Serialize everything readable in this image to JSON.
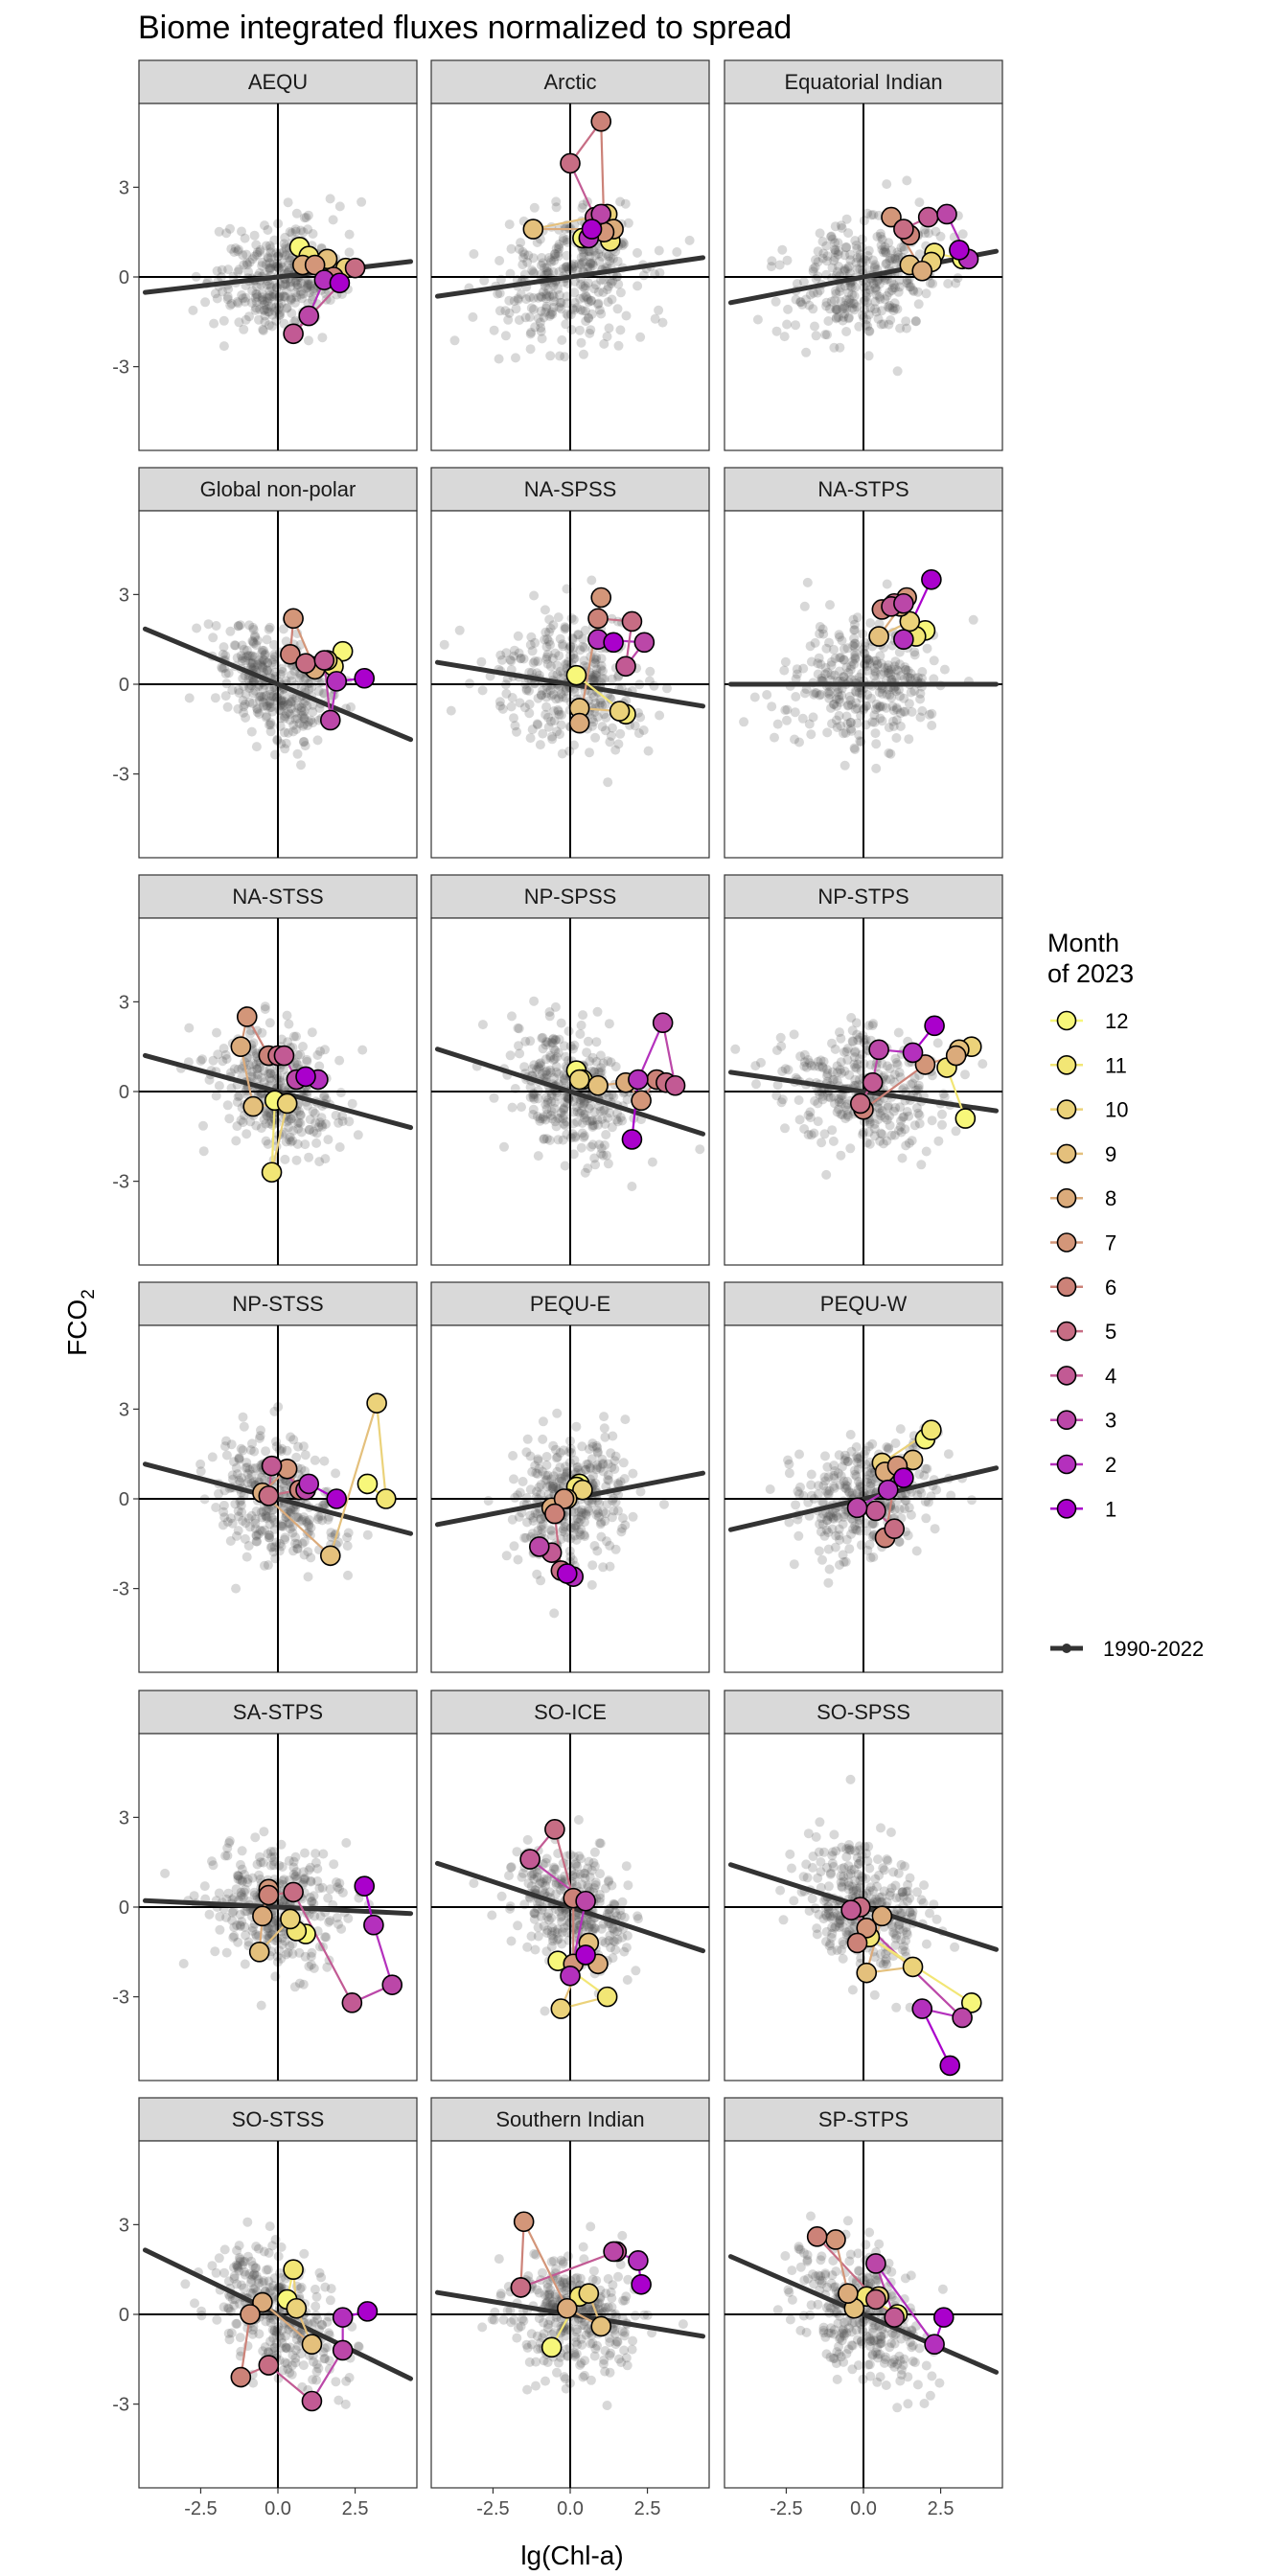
{
  "chart_data": {
    "type": "scatter",
    "title": "Biome integrated fluxes normalized to spread",
    "xlabel": "lg(Chl-a)",
    "ylabel_main": "FCO",
    "ylabel_sub": "2",
    "xlim": [
      -4.5,
      4.5
    ],
    "ylim": [
      -5.8,
      5.8
    ],
    "xticks": [
      -2.5,
      0,
      2.5
    ],
    "xtick_labels": [
      "-2.5",
      "0.0",
      "2.5"
    ],
    "yticks": [
      -3,
      0,
      3
    ],
    "ytick_labels": [
      "-3",
      "0",
      "3"
    ],
    "legend": {
      "title_line1": "Month",
      "title_line2": "of 2023",
      "months": [
        12,
        11,
        10,
        9,
        8,
        7,
        6,
        5,
        4,
        3,
        2,
        1
      ],
      "month_labels": [
        "12",
        "11",
        "10",
        "9",
        "8",
        "7",
        "6",
        "5",
        "4",
        "3",
        "2",
        "1"
      ],
      "month_colors": [
        "#f7f77a",
        "#f2e675",
        "#ebd27a",
        "#e4c07c",
        "#dbab7b",
        "#d39679",
        "#cc8278",
        "#c76d84",
        "#c25a94",
        "#bb47a8",
        "#b430bd",
        "#aa00cc"
      ],
      "line_label": "1990-2022",
      "line_color": "#333333"
    },
    "background_points_color": "#4d4d4d",
    "panels": [
      {
        "name": "AEQU",
        "slope": 0.12,
        "intercept": 0.0,
        "spread_x": 1.0,
        "spread_y": 0.9,
        "month_x": [
          2.0,
          1.5,
          1.0,
          0.5,
          2.5,
          1.8,
          1.2,
          0.8,
          1.6,
          2.2,
          1.0,
          0.7
        ],
        "month_y": [
          -0.2,
          -0.1,
          -1.3,
          -1.9,
          0.3,
          0.0,
          0.4,
          0.4,
          0.6,
          0.3,
          0.7,
          1.0
        ]
      },
      {
        "name": "Arctic",
        "slope": 0.15,
        "intercept": 0.0,
        "spread_x": 1.2,
        "spread_y": 1.1,
        "month_x": [
          0.7,
          0.6,
          1.0,
          0.8,
          0.0,
          1.0,
          1.1,
          1.4,
          -1.2,
          1.2,
          1.3,
          0.4
        ],
        "month_y": [
          1.6,
          1.3,
          2.1,
          2.0,
          3.8,
          5.2,
          1.5,
          1.6,
          1.6,
          2.1,
          1.2,
          1.3
        ]
      },
      {
        "name": "Equatorial Indian",
        "slope": 0.2,
        "intercept": 0.0,
        "spread_x": 1.2,
        "spread_y": 1.0,
        "month_x": [
          3.1,
          3.4,
          2.7,
          2.1,
          1.3,
          1.5,
          0.9,
          1.9,
          1.5,
          2.2,
          2.3,
          3.2
        ],
        "month_y": [
          0.9,
          0.6,
          2.1,
          2.0,
          1.6,
          1.4,
          2.0,
          0.2,
          0.4,
          0.5,
          0.8,
          0.6
        ]
      },
      {
        "name": "Global non-polar",
        "slope": -0.43,
        "intercept": 0.0,
        "spread_x": 0.9,
        "spread_y": 0.9,
        "month_x": [
          2.8,
          1.9,
          1.7,
          1.5,
          0.9,
          0.4,
          0.5,
          1.2,
          1.1,
          1.6,
          1.8,
          2.1
        ],
        "month_y": [
          0.2,
          0.1,
          -1.2,
          0.8,
          0.7,
          1.0,
          2.2,
          0.5,
          0.6,
          0.8,
          0.6,
          1.1
        ]
      },
      {
        "name": "NA-SPSS",
        "slope": -0.17,
        "intercept": 0.0,
        "spread_x": 1.2,
        "spread_y": 1.1,
        "month_x": [
          1.4,
          0.9,
          2.4,
          1.8,
          2.0,
          0.9,
          1.0,
          0.3,
          0.3,
          1.6,
          1.8,
          0.2
        ],
        "month_y": [
          1.4,
          1.5,
          1.4,
          0.6,
          2.1,
          2.2,
          2.9,
          -1.3,
          -0.8,
          -0.9,
          -1.0,
          0.3
        ]
      },
      {
        "name": "NA-STPS",
        "slope": 0.0,
        "intercept": 0.0,
        "spread_x": 1.2,
        "spread_y": 1.0,
        "month_x": [
          2.2,
          1.3,
          1.3,
          0.9,
          1.0,
          0.6,
          1.4,
          1.2,
          0.5,
          1.5,
          1.7,
          2.0
        ],
        "month_y": [
          3.5,
          1.5,
          2.7,
          2.6,
          2.7,
          2.5,
          2.9,
          2.6,
          1.6,
          2.1,
          1.6,
          1.8
        ]
      },
      {
        "name": "NA-STSS",
        "slope": -0.28,
        "intercept": 0.0,
        "spread_x": 1.0,
        "spread_y": 1.0,
        "month_x": [
          0.9,
          1.3,
          0.6,
          0.2,
          0.0,
          -0.3,
          -1.0,
          -1.2,
          -0.8,
          0.3,
          -0.2,
          -0.1
        ],
        "month_y": [
          0.5,
          0.4,
          0.4,
          1.2,
          1.2,
          1.2,
          2.5,
          1.5,
          -0.5,
          -0.4,
          -2.7,
          -0.3
        ]
      },
      {
        "name": "NP-SPSS",
        "slope": -0.33,
        "intercept": 0.0,
        "spread_x": 1.0,
        "spread_y": 1.0,
        "month_x": [
          2.0,
          2.2,
          3.0,
          3.4,
          3.1,
          2.8,
          2.3,
          1.8,
          0.9,
          0.3,
          0.4,
          0.2
        ],
        "month_y": [
          -1.6,
          0.4,
          2.3,
          0.2,
          0.3,
          0.4,
          -0.3,
          0.3,
          0.2,
          0.4,
          0.4,
          0.7
        ]
      },
      {
        "name": "NP-STPS",
        "slope": -0.15,
        "intercept": 0.0,
        "spread_x": 1.2,
        "spread_y": 1.0,
        "month_x": [
          2.3,
          1.6,
          0.5,
          0.3,
          -0.1,
          0.0,
          2.0,
          3.0,
          3.1,
          3.5,
          2.7,
          3.3
        ],
        "month_y": [
          2.2,
          1.3,
          1.4,
          0.3,
          -0.4,
          -0.6,
          0.9,
          1.2,
          1.4,
          1.5,
          0.8,
          -0.9
        ]
      },
      {
        "name": "NP-STSS",
        "slope": -0.27,
        "intercept": 0.0,
        "spread_x": 1.0,
        "spread_y": 1.0,
        "month_x": [
          1.9,
          1.0,
          0.9,
          -0.2,
          -0.3,
          0.7,
          0.3,
          -0.5,
          1.7,
          3.2,
          3.5,
          2.9
        ],
        "month_y": [
          0.0,
          0.5,
          0.3,
          1.1,
          0.1,
          0.3,
          1.0,
          0.2,
          -1.9,
          3.2,
          0.0,
          0.5
        ]
      },
      {
        "name": "PEQU-E",
        "slope": 0.2,
        "intercept": 0.0,
        "spread_x": 0.9,
        "spread_y": 1.0,
        "month_x": [
          -0.1,
          0.1,
          -1.0,
          -0.6,
          -0.3,
          -0.5,
          -0.2,
          -0.6,
          -0.1,
          0.4,
          0.2,
          0.3
        ],
        "month_y": [
          -2.5,
          -2.6,
          -1.6,
          -1.8,
          -2.4,
          -0.5,
          0.0,
          -0.3,
          0.0,
          0.3,
          0.4,
          0.5
        ]
      },
      {
        "name": "PEQU-W",
        "slope": 0.24,
        "intercept": 0.0,
        "spread_x": 1.1,
        "spread_y": 1.0,
        "month_x": [
          1.3,
          0.8,
          -0.2,
          0.4,
          1.0,
          0.7,
          1.1,
          0.7,
          1.6,
          0.6,
          2.2,
          2.0
        ],
        "month_y": [
          0.7,
          0.3,
          -0.3,
          -0.4,
          -1.0,
          -1.3,
          1.1,
          0.9,
          1.3,
          1.2,
          2.3,
          2.0
        ]
      },
      {
        "name": "SA-STPS",
        "slope": -0.05,
        "intercept": 0.0,
        "spread_x": 1.1,
        "spread_y": 1.0,
        "month_x": [
          2.8,
          3.1,
          3.7,
          2.4,
          0.5,
          -0.3,
          -0.3,
          -0.5,
          -0.6,
          0.4,
          0.6,
          0.9
        ],
        "month_y": [
          0.7,
          -0.6,
          -2.6,
          -3.2,
          0.5,
          0.4,
          0.6,
          -0.3,
          -1.5,
          -0.4,
          -0.8,
          -0.9
        ]
      },
      {
        "name": "SO-ICE",
        "slope": -0.34,
        "intercept": 0.0,
        "spread_x": 1.0,
        "spread_y": 1.0,
        "month_x": [
          0.5,
          0.0,
          0.5,
          -1.3,
          -0.5,
          0.1,
          0.1,
          0.9,
          0.6,
          -0.3,
          1.2,
          -0.4
        ],
        "month_y": [
          -1.6,
          -2.3,
          0.2,
          1.6,
          2.6,
          0.3,
          -1.9,
          -1.9,
          -1.2,
          -3.4,
          -3.0,
          -1.8
        ]
      },
      {
        "name": "SO-SPSS",
        "slope": -0.33,
        "intercept": 0.0,
        "spread_x": 1.0,
        "spread_y": 1.0,
        "month_x": [
          2.8,
          1.9,
          3.2,
          -0.4,
          -0.1,
          -0.2,
          0.1,
          0.6,
          0.1,
          1.6,
          0.2,
          3.5
        ],
        "month_y": [
          -5.3,
          -3.4,
          -3.7,
          -0.1,
          0.0,
          -1.2,
          -0.7,
          -0.3,
          -2.2,
          -2.0,
          -1.0,
          -3.2
        ]
      },
      {
        "name": "SO-STSS",
        "slope": -0.5,
        "intercept": 0.0,
        "spread_x": 1.1,
        "spread_y": 1.0,
        "month_x": [
          2.9,
          2.1,
          2.1,
          1.1,
          -0.3,
          -1.2,
          -0.9,
          -0.5,
          1.1,
          0.6,
          0.5,
          0.3
        ],
        "month_y": [
          0.1,
          -0.1,
          -1.2,
          -2.9,
          -1.7,
          -2.1,
          0.0,
          0.4,
          -1.0,
          0.2,
          1.5,
          0.5
        ]
      },
      {
        "name": "Southern Indian",
        "slope": -0.17,
        "intercept": 0.0,
        "spread_x": 1.0,
        "spread_y": 1.0,
        "month_x": [
          2.3,
          2.2,
          1.4,
          1.5,
          -1.6,
          -1.6,
          -1.5,
          -0.1,
          1.0,
          0.6,
          0.3,
          -0.6
        ],
        "month_y": [
          1.0,
          1.8,
          2.1,
          2.1,
          0.9,
          0.9,
          3.1,
          0.2,
          -0.4,
          0.7,
          0.6,
          -1.1
        ]
      },
      {
        "name": "SP-STPS",
        "slope": -0.45,
        "intercept": 0.0,
        "spread_x": 1.0,
        "spread_y": 1.0,
        "month_x": [
          2.6,
          2.3,
          0.4,
          1.0,
          0.4,
          -1.5,
          -0.9,
          -0.5,
          -0.3,
          0.5,
          0.1,
          1.1
        ],
        "month_y": [
          -0.1,
          -1.0,
          1.7,
          -0.1,
          0.5,
          2.6,
          2.5,
          0.7,
          0.2,
          0.6,
          0.6,
          0.0
        ]
      }
    ]
  }
}
